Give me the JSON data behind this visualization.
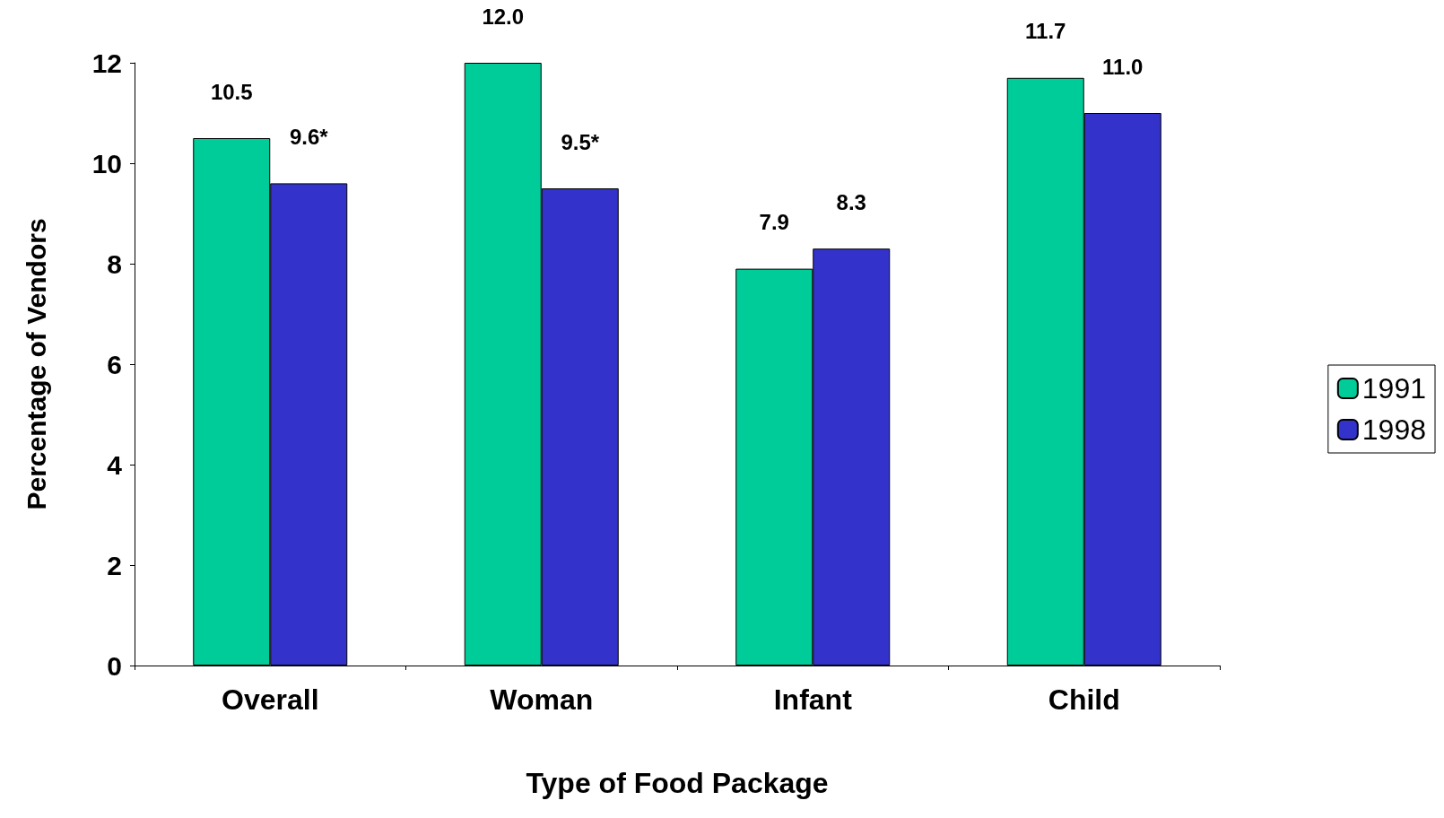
{
  "chart_data": {
    "type": "bar",
    "xlabel": "Type of Food Package",
    "ylabel": "Percentage of Vendors",
    "categories": [
      "Overall",
      "Woman",
      "Infant",
      "Child"
    ],
    "series": [
      {
        "name": "1991",
        "color": "#00cc99",
        "values": [
          10.5,
          12.0,
          7.9,
          11.7
        ],
        "value_labels": [
          "10.5",
          "12.0",
          "7.9",
          "11.7"
        ]
      },
      {
        "name": "1998",
        "color": "#3333cc",
        "values": [
          9.6,
          9.5,
          8.3,
          11.0
        ],
        "value_labels": [
          "9.6*",
          "9.5*",
          "8.3",
          "11.0"
        ]
      }
    ],
    "ylim": [
      0,
      12
    ],
    "yticks": [
      0,
      2,
      4,
      6,
      8,
      10,
      12
    ],
    "grid": false,
    "legend": "right"
  }
}
